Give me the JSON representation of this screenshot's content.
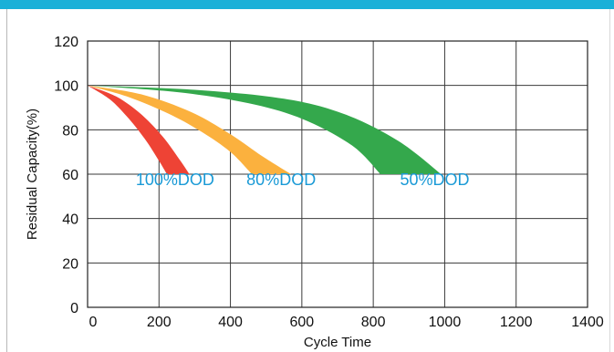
{
  "chart_data": {
    "type": "area",
    "title": "",
    "xlabel": "Cycle Time",
    "ylabel": "Residual Capacity(%)",
    "xlim": [
      0,
      1400
    ],
    "ylim": [
      0,
      120
    ],
    "x_ticks": [
      0,
      200,
      400,
      600,
      800,
      1000,
      1200,
      1400
    ],
    "y_ticks": [
      0,
      20,
      40,
      60,
      80,
      100,
      120
    ],
    "grid": true,
    "label_color": "#1a9ad6",
    "series": [
      {
        "name": "100%DOD",
        "color": "#ee4335",
        "label_at": [
          135,
          55
        ],
        "upper": [
          [
            0,
            100
          ],
          [
            80,
            95
          ],
          [
            150,
            87
          ],
          [
            210,
            77
          ],
          [
            260,
            66
          ],
          [
            285,
            60
          ]
        ],
        "lower": [
          [
            0,
            100
          ],
          [
            60,
            94
          ],
          [
            110,
            86
          ],
          [
            160,
            76
          ],
          [
            200,
            66
          ],
          [
            222,
            60
          ]
        ]
      },
      {
        "name": "80%DOD",
        "color": "#fbb13e",
        "label_at": [
          445,
          55
        ],
        "upper": [
          [
            0,
            100
          ],
          [
            150,
            96
          ],
          [
            290,
            88
          ],
          [
            400,
            78
          ],
          [
            490,
            68
          ],
          [
            570,
            60
          ]
        ],
        "lower": [
          [
            0,
            100
          ],
          [
            110,
            95
          ],
          [
            230,
            87
          ],
          [
            320,
            79
          ],
          [
            400,
            70
          ],
          [
            460,
            60
          ]
        ]
      },
      {
        "name": "50%DOD",
        "color": "#34a84c",
        "label_at": [
          875,
          55
        ],
        "upper": [
          [
            0,
            100
          ],
          [
            300,
            98
          ],
          [
            550,
            94
          ],
          [
            720,
            87
          ],
          [
            870,
            75
          ],
          [
            990,
            60
          ]
        ],
        "lower": [
          [
            0,
            100
          ],
          [
            250,
            97
          ],
          [
            450,
            92
          ],
          [
            600,
            85
          ],
          [
            740,
            73
          ],
          [
            820,
            60
          ]
        ]
      }
    ]
  }
}
